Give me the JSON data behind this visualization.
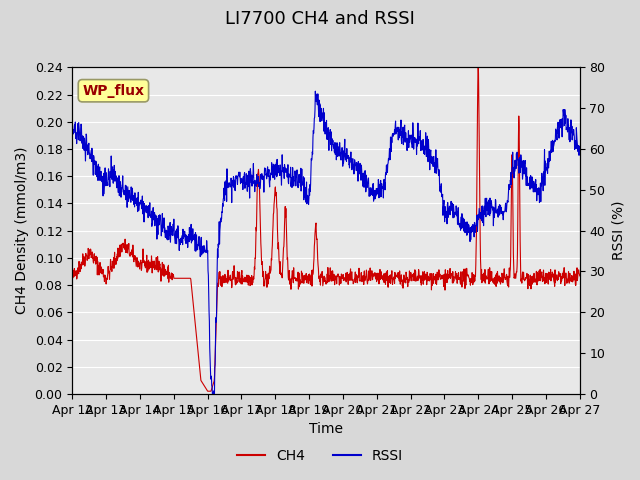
{
  "title": "LI7700 CH4 and RSSI",
  "xlabel": "Time",
  "ylabel_left": "CH4 Density (mmol/m3)",
  "ylabel_right": "RSSI (%)",
  "ylim_left": [
    0.0,
    0.24
  ],
  "ylim_right": [
    0,
    80
  ],
  "yticks_left": [
    0.0,
    0.02,
    0.04,
    0.06,
    0.08,
    0.1,
    0.12,
    0.14,
    0.16,
    0.18,
    0.2,
    0.22,
    0.24
  ],
  "yticks_right": [
    0,
    10,
    20,
    30,
    40,
    50,
    60,
    70,
    80
  ],
  "xtick_labels": [
    "Apr 12",
    "Apr 13",
    "Apr 14",
    "Apr 15",
    "Apr 16",
    "Apr 17",
    "Apr 18",
    "Apr 19",
    "Apr 20",
    "Apr 21",
    "Apr 22",
    "Apr 23",
    "Apr 24",
    "Apr 25",
    "Apr 26",
    "Apr 27"
  ],
  "ch4_color": "#cc0000",
  "rssi_color": "#0000cc",
  "bg_color": "#e0e0e0",
  "plot_bg_color": "#e8e8e8",
  "wp_flux_label": "WP_flux",
  "wp_flux_bg": "#ffff99",
  "wp_flux_border": "#999966",
  "wp_flux_text_color": "#990000",
  "legend_ch4": "CH4",
  "legend_rssi": "RSSI",
  "title_fontsize": 13,
  "axis_label_fontsize": 10,
  "tick_fontsize": 9
}
